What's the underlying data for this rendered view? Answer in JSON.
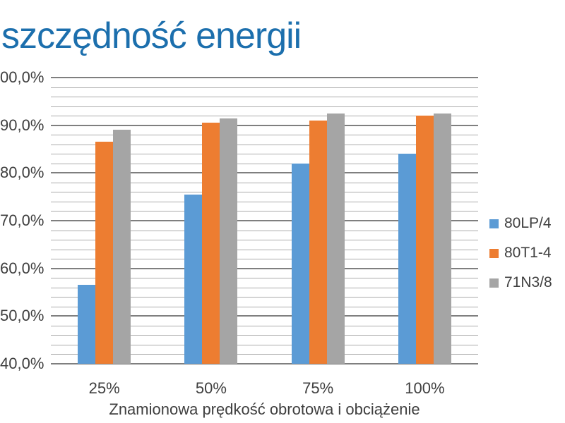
{
  "title": "szczędność energii",
  "colors": {
    "title": "#1c6fad",
    "axis_text": "#3f3f3f",
    "grid_major": "#7f7f7f",
    "grid_minor": "#ababab"
  },
  "chart_data": {
    "type": "bar",
    "categories": [
      "25%",
      "50%",
      "75%",
      "100%"
    ],
    "series": [
      {
        "name": "80LP/4",
        "color": "#5B9BD5",
        "values": [
          56.5,
          75.5,
          82.0,
          84.0
        ]
      },
      {
        "name": "80T1-4",
        "color": "#ED7D31",
        "values": [
          86.5,
          90.5,
          91.0,
          92.0
        ]
      },
      {
        "name": "71N3/8",
        "color": "#A5A5A5",
        "values": [
          89.0,
          91.5,
          92.5,
          92.5
        ]
      }
    ],
    "xlabel": "Znamionowa prędkość obrotowa i obciążenie",
    "ylabel": "",
    "ylim": [
      40,
      100
    ],
    "y_major_step": 10,
    "y_minor_step": 2,
    "y_tick_labels": [
      "00,0%",
      "90,0%",
      "80,0%",
      "70,0%",
      "60,0%",
      "50,0%",
      "40,0%"
    ],
    "grid": true,
    "legend_position": "right"
  }
}
